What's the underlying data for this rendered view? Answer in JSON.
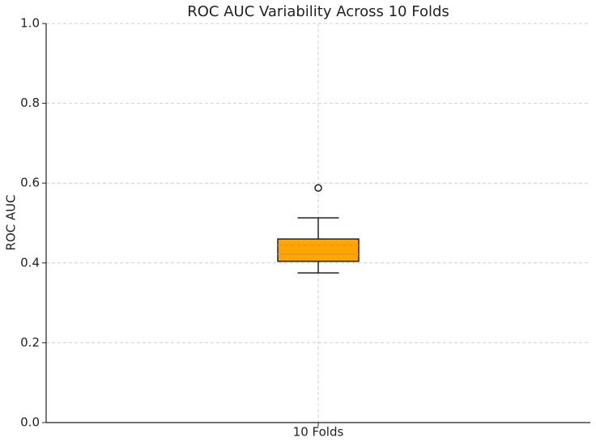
{
  "chart_data": {
    "type": "box",
    "title": "ROC AUC Variability Across 10 Folds",
    "y_label": "ROC AUC",
    "categories": [
      "10 Folds"
    ],
    "boxes": [
      {
        "whisker_low": 0.375,
        "q1": 0.404,
        "median": 0.422,
        "mean": 0.444,
        "q3": 0.46,
        "whisker_high": 0.513,
        "outliers": [
          0.588
        ]
      }
    ],
    "box_color": "#ffa500",
    "median_color": "#e8912d",
    "mean_color": "#e8912d",
    "ylim": [
      0,
      1
    ],
    "yticks": [
      {
        "value": 0,
        "label": "0.0"
      },
      0.2,
      0.4,
      0.6,
      0.8,
      {
        "value": 1,
        "label": "1.0"
      }
    ],
    "grid": true
  }
}
